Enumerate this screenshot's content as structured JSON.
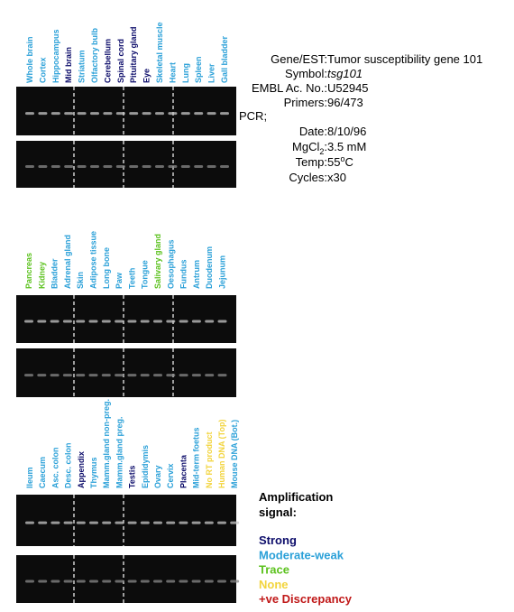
{
  "panels": [
    {
      "lanes": [
        {
          "label": "Whole brain",
          "color": "#2aa0d8"
        },
        {
          "label": "Cortex",
          "color": "#2aa0d8"
        },
        {
          "label": "Hippocampus",
          "color": "#2aa0d8"
        },
        {
          "label": "Mid brain",
          "color": "#0c0c6a"
        },
        {
          "label": "Striatum",
          "color": "#2aa0d8"
        },
        {
          "label": "Olfactory bulb",
          "color": "#2aa0d8"
        },
        {
          "label": "Cerebellum",
          "color": "#0c0c6a"
        },
        {
          "label": "Spinal cord",
          "color": "#0c0c6a"
        },
        {
          "label": "Pituitary gland",
          "color": "#0c0c6a"
        },
        {
          "label": "Eye",
          "color": "#0c0c6a"
        },
        {
          "label": "Skeletal muscle",
          "color": "#2aa0d8"
        },
        {
          "label": "Heart",
          "color": "#2aa0d8"
        },
        {
          "label": "Lung",
          "color": "#2aa0d8"
        },
        {
          "label": "Spleen",
          "color": "#2aa0d8"
        },
        {
          "label": "Liver",
          "color": "#2aa0d8"
        },
        {
          "label": "Gall bladder",
          "color": "#2aa0d8"
        }
      ]
    },
    {
      "lanes": [
        {
          "label": "Pancreas",
          "color": "#5cc21e"
        },
        {
          "label": "Kidney",
          "color": "#5cc21e"
        },
        {
          "label": "Bladder",
          "color": "#2aa0d8"
        },
        {
          "label": "Adrenal gland",
          "color": "#2aa0d8"
        },
        {
          "label": "Skin",
          "color": "#2aa0d8"
        },
        {
          "label": "Adipose tissue",
          "color": "#2aa0d8"
        },
        {
          "label": "Long bone",
          "color": "#2aa0d8"
        },
        {
          "label": "Paw",
          "color": "#2aa0d8"
        },
        {
          "label": "Teeth",
          "color": "#2aa0d8"
        },
        {
          "label": "Tongue",
          "color": "#2aa0d8"
        },
        {
          "label": "Salivary gland",
          "color": "#5cc21e"
        },
        {
          "label": "Oesophagus",
          "color": "#2aa0d8"
        },
        {
          "label": "Fundus",
          "color": "#2aa0d8"
        },
        {
          "label": "Antrum",
          "color": "#2aa0d8"
        },
        {
          "label": "Duodenum",
          "color": "#2aa0d8"
        },
        {
          "label": "Jejunum",
          "color": "#2aa0d8"
        }
      ]
    },
    {
      "lanes": [
        {
          "label": "Ileum",
          "color": "#2aa0d8"
        },
        {
          "label": "Caecum",
          "color": "#2aa0d8"
        },
        {
          "label": "Asc. colon",
          "color": "#2aa0d8"
        },
        {
          "label": "Desc. colon",
          "color": "#2aa0d8"
        },
        {
          "label": "Appendix",
          "color": "#0c0c6a"
        },
        {
          "label": "Thymus",
          "color": "#2aa0d8"
        },
        {
          "label": "Mamm.gland non-preg.",
          "color": "#2aa0d8"
        },
        {
          "label": "Mamm.gland preg.",
          "color": "#2aa0d8"
        },
        {
          "label": "Testis",
          "color": "#0c0c6a"
        },
        {
          "label": "Epididymis",
          "color": "#2aa0d8"
        },
        {
          "label": "Ovary",
          "color": "#2aa0d8"
        },
        {
          "label": "Cervix",
          "color": "#2aa0d8"
        },
        {
          "label": "Placenta",
          "color": "#0c0c6a"
        },
        {
          "label": "Mid-term foetus",
          "color": "#2aa0d8"
        },
        {
          "label": "No RT product",
          "color": "#f2d43c"
        },
        {
          "label": "Human DNA (Top)",
          "color": "#f2d43c"
        },
        {
          "label": "Mouse DNA (Bot.)",
          "color": "#2aa0d8"
        }
      ]
    }
  ],
  "info": {
    "gene": {
      "label": "Gene/EST:",
      "value": "Tumor susceptibility gene 101"
    },
    "symbol": {
      "label": "Symbol:",
      "value": "tsg101"
    },
    "embl": {
      "label": "EMBL Ac. No.:",
      "value": "U52945"
    },
    "primers": {
      "label": "Primers:",
      "value": "96/473"
    },
    "pcr": "PCR;",
    "date": {
      "label": "Date:",
      "value": "8/10/96"
    },
    "mgcl": {
      "label": "MgCl",
      "label_subscript": "2",
      "label_suffix": ":",
      "value": "3.5 mM"
    },
    "temp": {
      "label": "Temp:",
      "value": "55",
      "value_superscript": "o",
      "value_suffix": "C"
    },
    "cycles": {
      "label": "Cycles:",
      "value": "x30"
    }
  },
  "legend": {
    "title_line1": "Amplification",
    "title_line2": "signal:",
    "items": [
      {
        "label": "Strong",
        "color": "#0c0c6a"
      },
      {
        "label": "Moderate-weak",
        "color": "#2aa0d8"
      },
      {
        "label": "Trace",
        "color": "#5cc21e"
      },
      {
        "label": "None",
        "color": "#f2d43c"
      },
      {
        "label": "+ve Discrepancy",
        "color": "#c01818"
      }
    ]
  }
}
